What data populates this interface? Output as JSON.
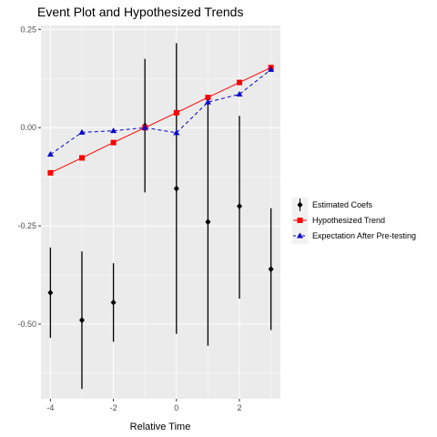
{
  "chart_data": {
    "type": "line",
    "title": "Event Plot and Hypothesized Trends",
    "xlabel": "Relative Time",
    "ylabel": "",
    "xlim": [
      -4.3,
      3.3
    ],
    "ylim": [
      -0.69,
      0.26
    ],
    "x_ticks": [
      -4,
      -2,
      0,
      2
    ],
    "y_ticks": [
      0.25,
      0.0,
      -0.25,
      -0.5
    ],
    "y_tick_labels": [
      "0.25",
      "0.00",
      "-0.25",
      "-0.50"
    ],
    "grid": true,
    "legend_position": "right",
    "x": [
      -4,
      -3,
      -2,
      -1,
      0,
      1,
      2,
      3
    ],
    "series": [
      {
        "name": "Estimated Coefs",
        "color": "#000000",
        "marker": "diamond",
        "values": [
          -0.42,
          -0.49,
          -0.445,
          0.005,
          -0.155,
          -0.24,
          -0.2,
          -0.36
        ],
        "ci_low": [
          -0.535,
          -0.665,
          -0.545,
          -0.165,
          -0.525,
          -0.555,
          -0.435,
          -0.515
        ],
        "ci_high": [
          -0.305,
          -0.315,
          -0.345,
          0.175,
          0.215,
          0.075,
          0.03,
          -0.205
        ]
      },
      {
        "name": "Hypothesized Trend",
        "color": "#ff0000",
        "marker": "square",
        "line": "solid",
        "values": [
          -0.115,
          -0.077,
          -0.038,
          0.0,
          0.038,
          0.077,
          0.115,
          0.153
        ]
      },
      {
        "name": "Expectation After Pre-testing",
        "color": "#0000cc",
        "marker": "triangle",
        "line": "dashed",
        "values": [
          -0.068,
          -0.012,
          -0.008,
          0.0,
          -0.013,
          0.065,
          0.085,
          0.148
        ]
      }
    ]
  }
}
